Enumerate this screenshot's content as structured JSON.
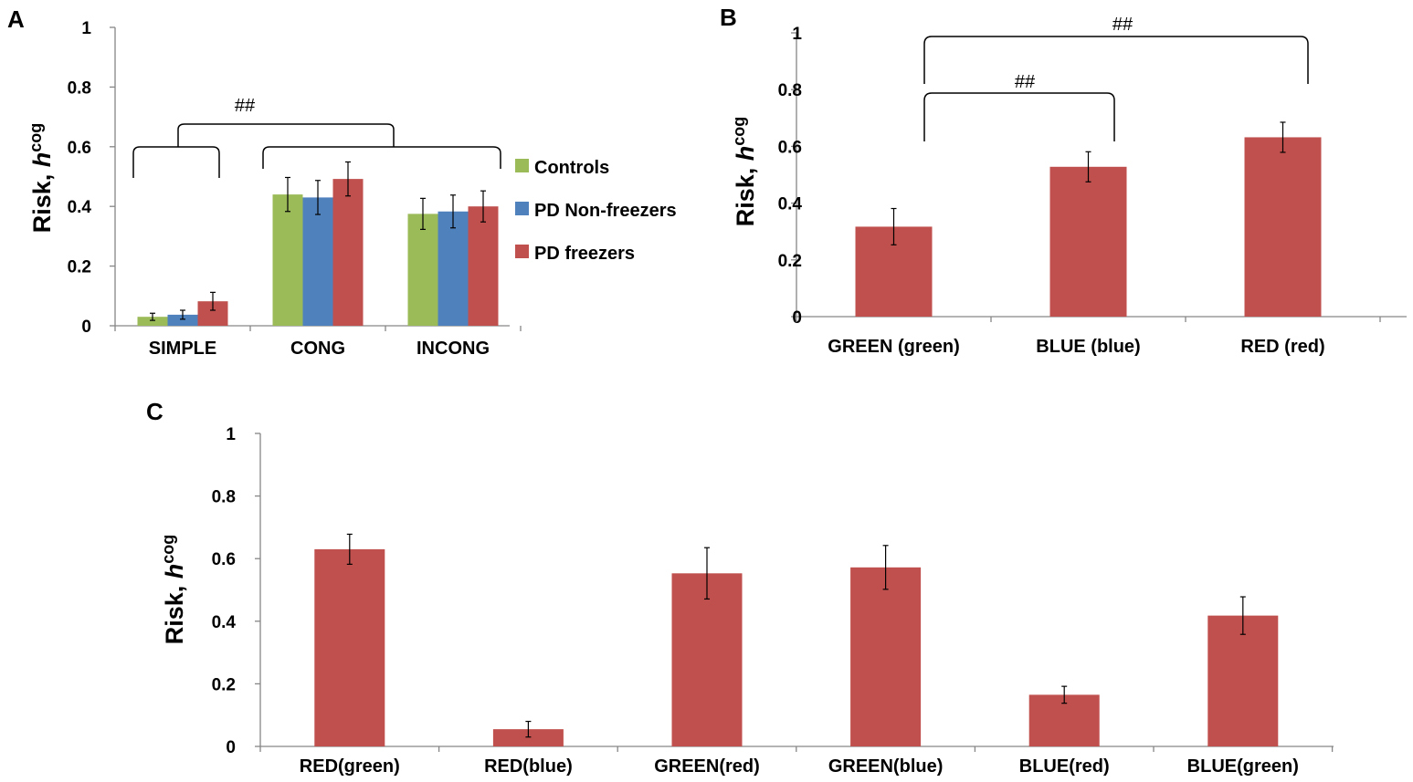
{
  "colors": {
    "controls": "#9BBB59",
    "non_freezers": "#4F81BD",
    "freezers": "#C0504D",
    "axis": "#868686",
    "errorbar": "#000000"
  },
  "chart_data": [
    {
      "panel": "A",
      "type": "bar",
      "ylabel": "Risk, ",
      "ylabel_italic": "h",
      "ylabel_sup": "cog",
      "ylim": [
        0,
        1
      ],
      "yticks": [
        "0",
        "0.2",
        "0.4",
        "0.6",
        "0.8",
        "1"
      ],
      "categories": [
        "SIMPLE",
        "CONG",
        "INCONG"
      ],
      "series": [
        {
          "name": "Controls",
          "values": [
            0.03,
            0.44,
            0.375
          ],
          "errors": [
            0.012,
            0.057,
            0.052
          ],
          "color_key": "controls"
        },
        {
          "name": "PD Non-freezers",
          "values": [
            0.037,
            0.43,
            0.383
          ],
          "errors": [
            0.015,
            0.057,
            0.055
          ],
          "color_key": "non_freezers"
        },
        {
          "name": "PD freezers",
          "values": [
            0.082,
            0.492,
            0.4
          ],
          "errors": [
            0.03,
            0.057,
            0.052
          ],
          "color_key": "freezers"
        }
      ],
      "legend": "right",
      "annotations": [
        {
          "text": "##",
          "between": [
            "SIMPLE",
            "CONG + INCONG"
          ]
        }
      ]
    },
    {
      "panel": "B",
      "type": "bar",
      "ylabel": "Risk, ",
      "ylabel_italic": "h",
      "ylabel_sup": "cog",
      "ylim": [
        0,
        1
      ],
      "yticks": [
        "0",
        "0.2",
        "0.4",
        "0.6",
        "0.8",
        "1"
      ],
      "categories": [
        "GREEN (green)",
        "BLUE (blue)",
        "RED (red)"
      ],
      "values": [
        0.317,
        0.528,
        0.632
      ],
      "errors": [
        0.064,
        0.053,
        0.053
      ],
      "annotations": [
        {
          "text": "##",
          "between": [
            "GREEN (green)",
            "BLUE (blue)"
          ]
        },
        {
          "text": "##",
          "between": [
            "GREEN (green)",
            "RED (red)"
          ]
        }
      ]
    },
    {
      "panel": "C",
      "type": "bar",
      "ylabel": "Risk, ",
      "ylabel_italic": "h",
      "ylabel_sup": "cog",
      "ylim": [
        0,
        1
      ],
      "yticks": [
        "0",
        "0.2",
        "0.4",
        "0.6",
        "0.8",
        "1"
      ],
      "categories": [
        "RED(green)",
        "RED(blue)",
        "GREEN(red)",
        "GREEN(blue)",
        "BLUE(red)",
        "BLUE(green)"
      ],
      "values": [
        0.63,
        0.055,
        0.553,
        0.572,
        0.165,
        0.418
      ],
      "errors": [
        0.048,
        0.025,
        0.082,
        0.07,
        0.027,
        0.06
      ]
    }
  ]
}
